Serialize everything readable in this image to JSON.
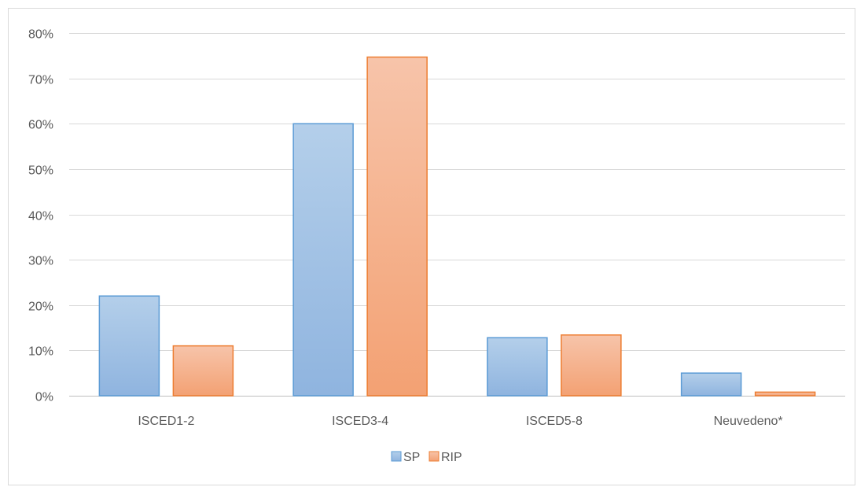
{
  "chart_data": {
    "type": "bar",
    "title": "",
    "xlabel": "",
    "ylabel": "",
    "categories": [
      "ISCED1-2",
      "ISCED3-4",
      "ISCED5-8",
      "Neuvedeno*"
    ],
    "series": [
      {
        "name": "SP",
        "values": [
          22,
          60,
          12.8,
          5
        ],
        "color": "#9dc3e6",
        "stroke": "#5b9bd5"
      },
      {
        "name": "RIP",
        "values": [
          11,
          74.7,
          13.4,
          0.8
        ],
        "color": "#f4b183",
        "stroke": "#ed7d31"
      }
    ],
    "ylim": [
      0,
      80
    ],
    "yticks": [
      0,
      10,
      20,
      30,
      40,
      50,
      60,
      70,
      80
    ],
    "ytick_labels": [
      "0%",
      "10%",
      "20%",
      "30%",
      "40%",
      "50%",
      "60%",
      "70%",
      "80%"
    ],
    "grid": true,
    "legend": "bottom"
  }
}
